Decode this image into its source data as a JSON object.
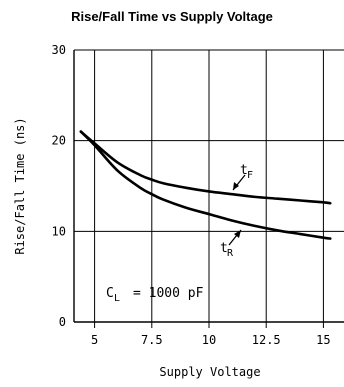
{
  "chart_data": {
    "type": "line",
    "title": "Rise/Fall Time vs Supply Voltage",
    "xlabel": "Supply Voltage",
    "ylabel": "Rise/Fall Time (ns)",
    "xlim": [
      4.1,
      15.9
    ],
    "ylim": [
      0,
      30
    ],
    "x_ticks": [
      5,
      7.5,
      10,
      12.5,
      15
    ],
    "x_tick_labels": [
      "5",
      "7.5",
      "10",
      "12.5",
      "15"
    ],
    "y_ticks": [
      0,
      10,
      20,
      30
    ],
    "y_tick_labels": [
      "0",
      "10",
      "20",
      "30"
    ],
    "grid": true,
    "series": [
      {
        "name": "tF",
        "x": [
          4.4,
          5,
          6,
          7,
          7.5,
          8,
          9,
          10,
          11,
          12,
          13,
          14,
          15,
          15.3
        ],
        "y": [
          21,
          19.7,
          17.6,
          16.2,
          15.7,
          15.3,
          14.8,
          14.4,
          14.1,
          13.8,
          13.6,
          13.4,
          13.2,
          13.1
        ]
      },
      {
        "name": "tR",
        "x": [
          4.4,
          5,
          6,
          7,
          7.5,
          8,
          9,
          10,
          11,
          12,
          13,
          14,
          15,
          15.3
        ],
        "y": [
          21,
          19.5,
          16.7,
          14.8,
          14.1,
          13.5,
          12.6,
          11.9,
          11.2,
          10.6,
          10.1,
          9.7,
          9.3,
          9.2
        ]
      }
    ],
    "annotations": {
      "tF": {
        "main": "t",
        "sub": "F"
      },
      "tR": {
        "main": "t",
        "sub": "R"
      },
      "cl": {
        "main": "C",
        "sub": "L",
        "rest": "= 1000 pF"
      }
    }
  }
}
